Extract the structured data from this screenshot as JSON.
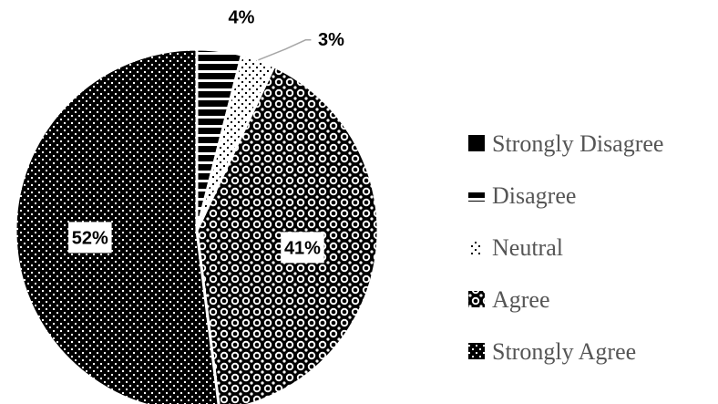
{
  "chart_data": {
    "type": "pie",
    "title": "",
    "start_angle_deg": 0,
    "direction": "clockwise",
    "legend_position": "right",
    "slices": [
      {
        "name": "Strongly Disagree",
        "value": 0,
        "label": "",
        "pattern": "solid"
      },
      {
        "name": "Disagree",
        "value": 4,
        "label": "4%",
        "pattern": "horizontal-stripes"
      },
      {
        "name": "Neutral",
        "value": 3,
        "label": "3%",
        "pattern": "sparse-dots"
      },
      {
        "name": "Agree",
        "value": 41,
        "label": "41%",
        "pattern": "circles"
      },
      {
        "name": "Strongly Agree",
        "value": 52,
        "label": "52%",
        "pattern": "dense-dots"
      }
    ]
  }
}
